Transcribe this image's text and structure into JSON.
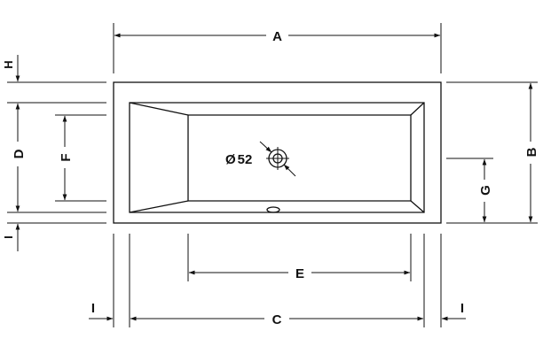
{
  "labels": {
    "A": "A",
    "B": "B",
    "C": "C",
    "D": "D",
    "E": "E",
    "F": "F",
    "G": "G",
    "H": "H",
    "I_left_vertical": "I",
    "I_bottom_left": "I",
    "I_bottom_right": "I"
  },
  "drain": {
    "diameter_symbol": "Ø",
    "diameter_value": "52"
  }
}
